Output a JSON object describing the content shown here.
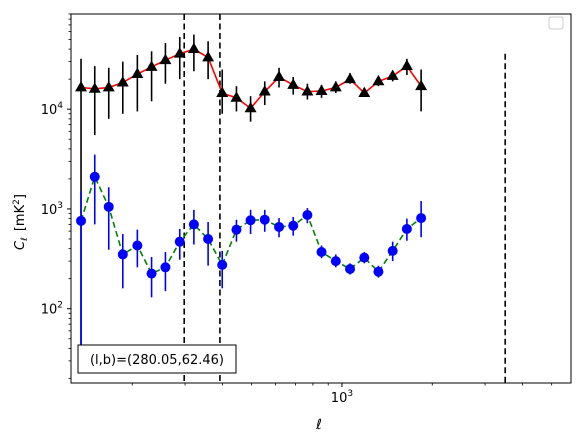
{
  "chart_data": {
    "type": "line",
    "xscale": "log",
    "yscale": "log",
    "xlabel": "ℓ",
    "ylabel_main": "C",
    "ylabel_sub": "ℓ",
    "ylabel_unit": "[mK",
    "ylabel_unit_exp": "2",
    "ylabel_unit_close": "]",
    "xlim": [
      125,
      5800
    ],
    "ylim": [
      18,
      90000
    ],
    "xticks": [
      {
        "base": "10",
        "exp": "3",
        "value": 1000
      }
    ],
    "yticks": [
      {
        "base": "10",
        "exp": "2",
        "value": 100
      },
      {
        "base": "10",
        "exp": "3",
        "value": 1000
      },
      {
        "base": "10",
        "exp": "4",
        "value": 10000
      }
    ],
    "vlines": [
      {
        "x": 298,
        "y_range": [
          18,
          90000
        ]
      },
      {
        "x": 392,
        "y_range": [
          18,
          90000
        ]
      },
      {
        "x": 3500,
        "y_range": [
          18,
          36000
        ]
      }
    ],
    "annotation": "(l,b)=(280.05,62.46)",
    "legend": {
      "position": "top-right",
      "entries": []
    },
    "series": [
      {
        "color": "#ff0000",
        "marker": "triangle",
        "marker_color": "#000000",
        "errorbar_color": "#000000",
        "linestyle": "solid",
        "points": [
          {
            "x": 135,
            "y": 16500,
            "ylo": 26,
            "yhi": 32000
          },
          {
            "x": 150,
            "y": 16000,
            "ylo": 5500,
            "yhi": 27000
          },
          {
            "x": 167,
            "y": 16500,
            "ylo": 8000,
            "yhi": 26000
          },
          {
            "x": 186,
            "y": 18500,
            "ylo": 9000,
            "yhi": 30000
          },
          {
            "x": 208,
            "y": 22500,
            "ylo": 9500,
            "yhi": 35000
          },
          {
            "x": 232,
            "y": 26500,
            "ylo": 12000,
            "yhi": 38000
          },
          {
            "x": 258,
            "y": 31000,
            "ylo": 18000,
            "yhi": 46000
          },
          {
            "x": 288,
            "y": 36000,
            "ylo": 20000,
            "yhi": 53000
          },
          {
            "x": 321,
            "y": 40000,
            "ylo": 24000,
            "yhi": 56000
          },
          {
            "x": 358,
            "y": 33000,
            "ylo": 20000,
            "yhi": 48000
          },
          {
            "x": 399,
            "y": 14500,
            "ylo": 9000,
            "yhi": 25000
          },
          {
            "x": 445,
            "y": 13000,
            "ylo": 9500,
            "yhi": 17000
          },
          {
            "x": 496,
            "y": 10200,
            "ylo": 7500,
            "yhi": 13500
          },
          {
            "x": 553,
            "y": 15000,
            "ylo": 11000,
            "yhi": 19000
          },
          {
            "x": 617,
            "y": 21000,
            "ylo": 16500,
            "yhi": 26000
          },
          {
            "x": 688,
            "y": 17500,
            "ylo": 14000,
            "yhi": 21000
          },
          {
            "x": 767,
            "y": 15000,
            "ylo": 12500,
            "yhi": 18000
          },
          {
            "x": 855,
            "y": 15200,
            "ylo": 13000,
            "yhi": 17500
          },
          {
            "x": 954,
            "y": 16500,
            "ylo": 14500,
            "yhi": 19000
          },
          {
            "x": 1064,
            "y": 20000,
            "ylo": 18000,
            "yhi": 23000
          },
          {
            "x": 1187,
            "y": 14500,
            "ylo": 13500,
            "yhi": 16000
          },
          {
            "x": 1323,
            "y": 19000,
            "ylo": 17000,
            "yhi": 21000
          },
          {
            "x": 1476,
            "y": 21500,
            "ylo": 19000,
            "yhi": 24000
          },
          {
            "x": 1646,
            "y": 27000,
            "ylo": 22000,
            "yhi": 32000
          },
          {
            "x": 1836,
            "y": 17000,
            "ylo": 9500,
            "yhi": 25000
          }
        ]
      },
      {
        "color": "#008000",
        "marker": "circle",
        "marker_color": "#0000ff",
        "errorbar_color": "#0000ff",
        "linestyle": "dashed",
        "points": [
          {
            "x": 135,
            "y": 760,
            "ylo": 30,
            "yhi": 1500
          },
          {
            "x": 150,
            "y": 2100,
            "ylo": 700,
            "yhi": 3500
          },
          {
            "x": 167,
            "y": 1050,
            "ylo": 390,
            "yhi": 1650
          },
          {
            "x": 186,
            "y": 350,
            "ylo": 160,
            "yhi": 560
          },
          {
            "x": 208,
            "y": 430,
            "ylo": 260,
            "yhi": 620
          },
          {
            "x": 232,
            "y": 225,
            "ylo": 130,
            "yhi": 330
          },
          {
            "x": 258,
            "y": 260,
            "ylo": 150,
            "yhi": 370
          },
          {
            "x": 288,
            "y": 470,
            "ylo": 310,
            "yhi": 630
          },
          {
            "x": 321,
            "y": 700,
            "ylo": 440,
            "yhi": 980
          },
          {
            "x": 358,
            "y": 500,
            "ylo": 270,
            "yhi": 740
          },
          {
            "x": 399,
            "y": 275,
            "ylo": 160,
            "yhi": 380
          },
          {
            "x": 445,
            "y": 620,
            "ylo": 470,
            "yhi": 780
          },
          {
            "x": 496,
            "y": 770,
            "ylo": 560,
            "yhi": 980
          },
          {
            "x": 553,
            "y": 780,
            "ylo": 590,
            "yhi": 980
          },
          {
            "x": 617,
            "y": 660,
            "ylo": 520,
            "yhi": 810
          },
          {
            "x": 688,
            "y": 680,
            "ylo": 540,
            "yhi": 830
          },
          {
            "x": 767,
            "y": 870,
            "ylo": 720,
            "yhi": 1020
          },
          {
            "x": 855,
            "y": 370,
            "ylo": 320,
            "yhi": 430
          },
          {
            "x": 954,
            "y": 300,
            "ylo": 260,
            "yhi": 350
          },
          {
            "x": 1064,
            "y": 250,
            "ylo": 220,
            "yhi": 285
          },
          {
            "x": 1187,
            "y": 325,
            "ylo": 285,
            "yhi": 370
          },
          {
            "x": 1323,
            "y": 235,
            "ylo": 205,
            "yhi": 270
          },
          {
            "x": 1476,
            "y": 380,
            "ylo": 300,
            "yhi": 470
          },
          {
            "x": 1646,
            "y": 630,
            "ylo": 480,
            "yhi": 800
          },
          {
            "x": 1836,
            "y": 810,
            "ylo": 520,
            "yhi": 1200
          }
        ]
      }
    ]
  }
}
